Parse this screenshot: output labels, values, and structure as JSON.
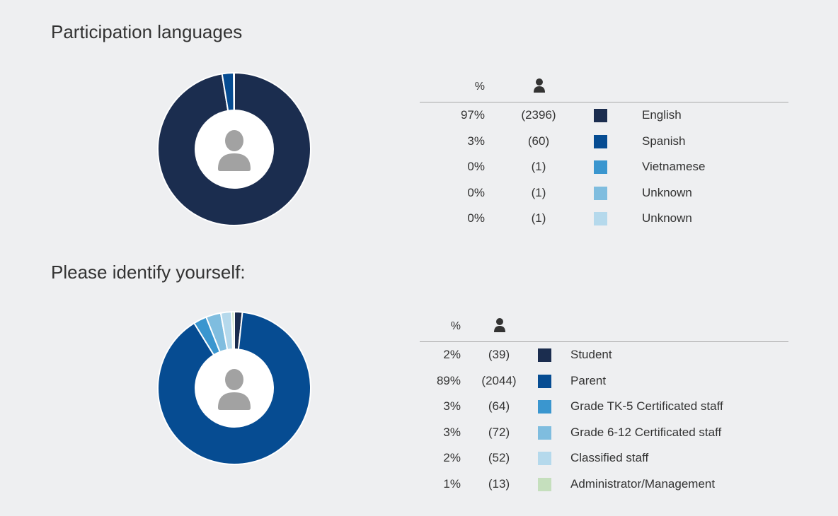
{
  "charts": [
    {
      "title": "Participation languages",
      "header": {
        "pct_label": "%",
        "count_icon": "person-icon"
      },
      "center_icon": "person-icon",
      "rows": [
        {
          "pct": "97%",
          "count": "(2396)",
          "label": "English",
          "color": "#1b2d4f"
        },
        {
          "pct": "3%",
          "count": "(60)",
          "label": "Spanish",
          "color": "#064c92"
        },
        {
          "pct": "0%",
          "count": "(1)",
          "label": "Vietnamese",
          "color": "#3a96cf"
        },
        {
          "pct": "0%",
          "count": "(1)",
          "label": "Unknown",
          "color": "#7fbddf"
        },
        {
          "pct": "0%",
          "count": "(1)",
          "label": "Unknown",
          "color": "#b5d9ec"
        }
      ]
    },
    {
      "title": "Please identify yourself:",
      "header": {
        "pct_label": "%",
        "count_icon": "person-icon"
      },
      "center_icon": "person-icon",
      "rows": [
        {
          "pct": "2%",
          "count": "(39)",
          "label": "Student",
          "color": "#1b2d4f"
        },
        {
          "pct": "89%",
          "count": "(2044)",
          "label": "Parent",
          "color": "#064c92"
        },
        {
          "pct": "3%",
          "count": "(64)",
          "label": "Grade TK-5 Certificated staff",
          "color": "#3a96cf"
        },
        {
          "pct": "3%",
          "count": "(72)",
          "label": "Grade 6-12 Certificated staff",
          "color": "#7fbddf"
        },
        {
          "pct": "2%",
          "count": "(52)",
          "label": "Classified staff",
          "color": "#b5d9ec"
        },
        {
          "pct": "1%",
          "count": "(13)",
          "label": "Administrator/Management",
          "color": "#c5dfbd"
        }
      ]
    }
  ],
  "chart_data": [
    {
      "type": "pie",
      "title": "Participation languages",
      "categories": [
        "English",
        "Spanish",
        "Vietnamese",
        "Unknown",
        "Unknown"
      ],
      "values": [
        2396,
        60,
        1,
        1,
        1
      ],
      "percent": [
        97,
        3,
        0,
        0,
        0
      ],
      "colors": [
        "#1b2d4f",
        "#064c92",
        "#3a96cf",
        "#7fbddf",
        "#b5d9ec"
      ]
    },
    {
      "type": "pie",
      "title": "Please identify yourself:",
      "categories": [
        "Student",
        "Parent",
        "Grade TK-5 Certificated staff",
        "Grade 6-12 Certificated staff",
        "Classified staff",
        "Administrator/Management"
      ],
      "values": [
        39,
        2044,
        64,
        72,
        52,
        13
      ],
      "percent": [
        2,
        89,
        3,
        3,
        2,
        1
      ],
      "colors": [
        "#1b2d4f",
        "#064c92",
        "#3a96cf",
        "#7fbddf",
        "#b5d9ec",
        "#c5dfbd"
      ]
    }
  ]
}
